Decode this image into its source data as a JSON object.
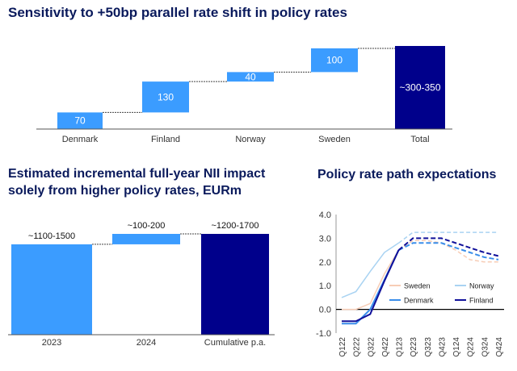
{
  "colors": {
    "title": "#0a1a5c",
    "light_blue": "#3b9cff",
    "dark_navy": "#00008b",
    "sweden": "#f7cdb6",
    "norway": "#a9d3f2",
    "denmark": "#3a8eea",
    "finland": "#10109a",
    "connector": "#444444"
  },
  "chart_data": [
    {
      "type": "waterfall",
      "title": "Sensitivity to +50bp parallel rate shift in policy rates",
      "categories": [
        "Denmark",
        "Finland",
        "Norway",
        "Sweden",
        "Total"
      ],
      "values": [
        70,
        130,
        40,
        100,
        325
      ],
      "bar_labels": [
        "70",
        "130",
        "40",
        "100",
        "~300-350"
      ],
      "ylim": [
        0,
        350
      ]
    },
    {
      "type": "waterfall",
      "title": "Estimated incremental full-year NII impact solely from higher policy rates, EURm",
      "categories": [
        "2023",
        "2024",
        "Cumulative p.a."
      ],
      "values": [
        1300,
        150,
        1450
      ],
      "bar_labels": [
        "~1100-1500",
        "~100-200",
        "~1200-1700"
      ],
      "ylim": [
        0,
        1800
      ]
    },
    {
      "type": "line",
      "title": "Policy rate path expectations",
      "x": [
        "Q122",
        "Q222",
        "Q322",
        "Q422",
        "Q123",
        "Q223",
        "Q323",
        "Q423",
        "Q124",
        "Q224",
        "Q324",
        "Q424"
      ],
      "ylim": [
        -1.0,
        4.0
      ],
      "yticks": [
        "4.0",
        "3.0",
        "2.0",
        "1.0",
        "0.0",
        "-1.0"
      ],
      "legend": [
        "Sweden",
        "Norway",
        "Denmark",
        "Finland"
      ],
      "series": [
        {
          "name": "Sweden",
          "values": [
            0.0,
            0.0,
            0.25,
            1.5,
            2.5,
            2.9,
            2.9,
            2.8,
            2.5,
            2.1,
            2.0,
            2.0
          ]
        },
        {
          "name": "Norway",
          "values": [
            0.5,
            0.75,
            1.6,
            2.4,
            2.8,
            3.25,
            3.25,
            3.25,
            3.25,
            3.25,
            3.25,
            3.25
          ]
        },
        {
          "name": "Denmark",
          "values": [
            -0.6,
            -0.6,
            0.0,
            1.25,
            2.5,
            2.8,
            2.8,
            2.8,
            2.6,
            2.4,
            2.2,
            2.1
          ]
        },
        {
          "name": "Finland",
          "values": [
            -0.5,
            -0.5,
            -0.2,
            1.2,
            2.5,
            3.0,
            3.0,
            3.0,
            2.8,
            2.6,
            2.4,
            2.25
          ]
        }
      ]
    }
  ]
}
